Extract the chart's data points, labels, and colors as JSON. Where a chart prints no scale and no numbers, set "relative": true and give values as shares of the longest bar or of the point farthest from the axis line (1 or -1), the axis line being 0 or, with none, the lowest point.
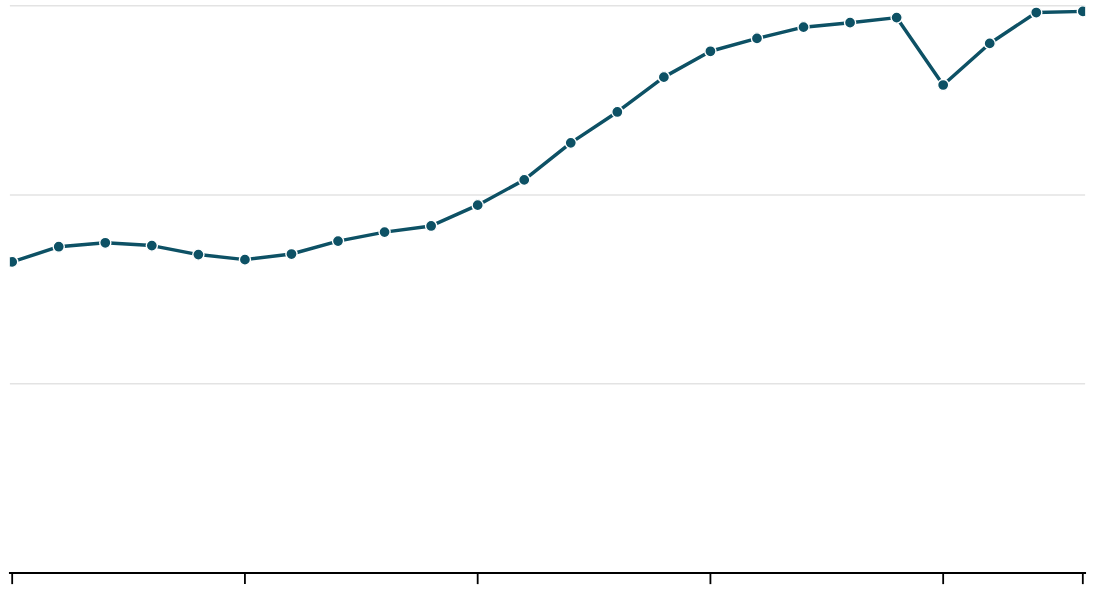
{
  "chart_data": {
    "type": "line",
    "relative": true,
    "marker": "circle",
    "line_style": "solid",
    "ref_lines": [
      {
        "axis": "y",
        "value": 0.337,
        "color": "#e3e3e3"
      },
      {
        "axis": "y",
        "value": 0.673,
        "color": "#e3e3e3"
      },
      {
        "axis": "y",
        "value": 1.01,
        "color": "#e3e3e3"
      }
    ],
    "legend": false,
    "tick_labels": false,
    "categories": [
      null,
      null,
      null,
      null,
      null,
      null,
      null,
      null,
      null,
      null,
      null,
      null,
      null,
      null,
      null,
      null,
      null,
      null,
      null,
      null,
      null,
      null,
      null,
      null
    ],
    "series": [
      {
        "color": "#0d5165",
        "values": [
          0.554,
          0.581,
          0.588,
          0.583,
          0.567,
          0.558,
          0.568,
          0.591,
          0.607,
          0.618,
          0.655,
          0.7,
          0.766,
          0.821,
          0.883,
          0.929,
          0.952,
          0.972,
          0.98,
          0.989,
          0.869,
          0.943,
          0.998,
          1
        ]
      }
    ]
  }
}
